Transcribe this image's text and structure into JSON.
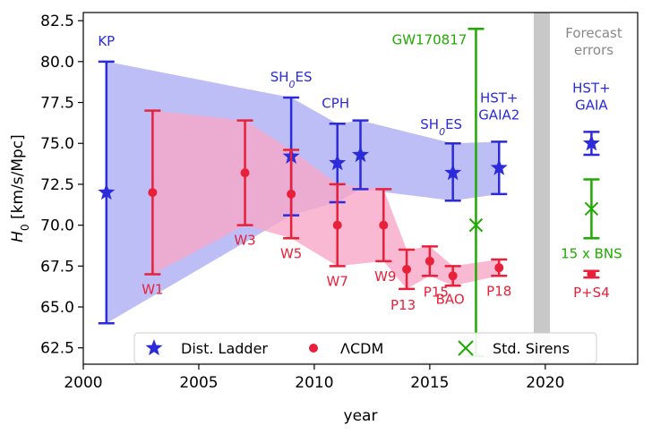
{
  "chart_data": {
    "type": "scatter",
    "xlabel": "year",
    "ylabel_main": "H",
    "ylabel_sub": "0",
    "ylabel_rest": " [km/s/Mpc]",
    "xlim": [
      2000,
      2024
    ],
    "ylim": [
      61.5,
      83.0
    ],
    "xticks": [
      2000,
      2005,
      2010,
      2015,
      2020
    ],
    "yticks": [
      62.5,
      65.0,
      67.5,
      70.0,
      72.5,
      75.0,
      77.5,
      80.0,
      82.5
    ],
    "colors": {
      "ladder": "#2b2bd9",
      "lcdm": "#e8203a",
      "sirens": "#1faa00",
      "ladder_band": "#b3b3f5",
      "lcdm_band": "#f7a8c8",
      "forecast_bar": "#c8c8c8",
      "forecast_text": "#888888"
    },
    "forecast_region": {
      "x_start": 2019.5,
      "x_end": 2020.2,
      "label_line1": "Forecast",
      "label_line2": "errors"
    },
    "series": [
      {
        "name": "Dist. Ladder",
        "marker": "star",
        "points": [
          {
            "x": 2001,
            "y": 72.0,
            "lo": 64.0,
            "hi": 80.0,
            "label": "KP"
          },
          {
            "x": 2009,
            "y": 74.2,
            "lo": 70.6,
            "hi": 77.8,
            "label": "SH0ES"
          },
          {
            "x": 2011,
            "y": 73.8,
            "lo": 71.4,
            "hi": 76.2,
            "label": "CPH"
          },
          {
            "x": 2012,
            "y": 74.3,
            "lo": 72.2,
            "hi": 76.4,
            "label": ""
          },
          {
            "x": 2016,
            "y": 73.2,
            "lo": 71.5,
            "hi": 75.0,
            "label": "SH0ES"
          },
          {
            "x": 2018,
            "y": 73.5,
            "lo": 71.9,
            "hi": 75.1,
            "label": "HST+\nGAIA2"
          },
          {
            "x": 2022,
            "y": 75.0,
            "lo": 74.3,
            "hi": 75.7,
            "label": "HST+\nGAIA"
          }
        ]
      },
      {
        "name": "ΛCDM",
        "marker": "circle",
        "points": [
          {
            "x": 2003,
            "y": 72.0,
            "lo": 67.0,
            "hi": 77.0,
            "label": "W1"
          },
          {
            "x": 2007,
            "y": 73.2,
            "lo": 70.0,
            "hi": 76.4,
            "label": "W3"
          },
          {
            "x": 2009,
            "y": 71.9,
            "lo": 69.2,
            "hi": 74.6,
            "label": "W5"
          },
          {
            "x": 2011,
            "y": 70.0,
            "lo": 67.5,
            "hi": 72.5,
            "label": "W7"
          },
          {
            "x": 2013,
            "y": 70.0,
            "lo": 67.8,
            "hi": 72.2,
            "label": "W9"
          },
          {
            "x": 2014,
            "y": 67.3,
            "lo": 66.1,
            "hi": 68.5,
            "label": "P13"
          },
          {
            "x": 2015,
            "y": 67.8,
            "lo": 66.9,
            "hi": 68.7,
            "label": "P15"
          },
          {
            "x": 2016,
            "y": 66.9,
            "lo": 66.3,
            "hi": 67.5,
            "label": "BAO"
          },
          {
            "x": 2018,
            "y": 67.4,
            "lo": 66.9,
            "hi": 67.9,
            "label": "P18"
          },
          {
            "x": 2022,
            "y": 67.0,
            "lo": 66.8,
            "hi": 67.2,
            "label": "P+S4"
          }
        ]
      },
      {
        "name": "Std. Sirens",
        "marker": "x",
        "points": [
          {
            "x": 2017,
            "y": 70.0,
            "lo": 62.0,
            "hi": 82.0,
            "label": "GW170817"
          },
          {
            "x": 2022,
            "y": 71.0,
            "lo": 69.2,
            "hi": 72.8,
            "label": "15 x BNS"
          }
        ]
      }
    ],
    "ladder_band": {
      "upper": [
        [
          2001,
          80.0
        ],
        [
          2009,
          77.8
        ],
        [
          2011,
          76.2
        ],
        [
          2012,
          76.4
        ],
        [
          2016,
          75.0
        ],
        [
          2018,
          75.1
        ]
      ],
      "lower": [
        [
          2001,
          64.0
        ],
        [
          2009,
          70.6
        ],
        [
          2011,
          71.4
        ],
        [
          2012,
          72.2
        ],
        [
          2016,
          71.5
        ],
        [
          2018,
          71.9
        ]
      ]
    },
    "lcdm_band": {
      "upper": [
        [
          2003,
          77.0
        ],
        [
          2007,
          76.4
        ],
        [
          2009,
          74.6
        ],
        [
          2011,
          72.5
        ],
        [
          2013,
          72.2
        ],
        [
          2014,
          68.5
        ],
        [
          2015,
          68.7
        ],
        [
          2016,
          67.5
        ],
        [
          2018,
          67.9
        ]
      ],
      "lower": [
        [
          2003,
          67.0
        ],
        [
          2007,
          70.0
        ],
        [
          2009,
          69.2
        ],
        [
          2011,
          67.5
        ],
        [
          2013,
          67.8
        ],
        [
          2014,
          66.1
        ],
        [
          2015,
          66.9
        ],
        [
          2016,
          66.3
        ],
        [
          2018,
          66.9
        ]
      ]
    },
    "legend": {
      "placement": "bottom-center",
      "items": [
        {
          "label": "Dist. Ladder",
          "marker": "star"
        },
        {
          "label": "ΛCDM",
          "marker": "circle"
        },
        {
          "label": "Std. Sirens",
          "marker": "x"
        }
      ]
    },
    "grid": false
  }
}
